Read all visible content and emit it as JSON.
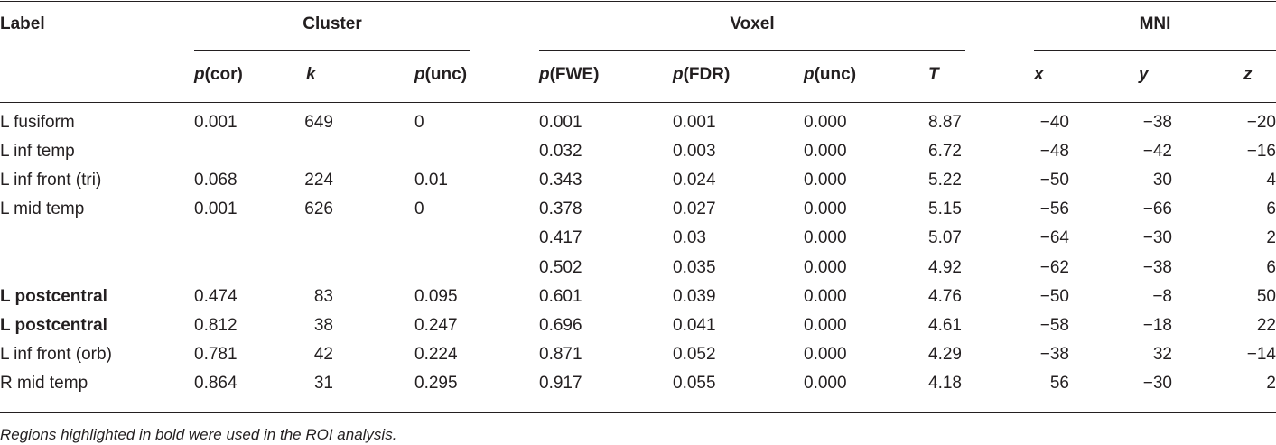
{
  "table": {
    "header": {
      "label": "Label",
      "cluster": "Cluster",
      "voxel": "Voxel",
      "mni": "MNI",
      "sub": {
        "p_cor": {
          "p": "p",
          "rest": "(cor)"
        },
        "k": "k",
        "p_unc_cluster": {
          "p": "p",
          "rest": "(unc)"
        },
        "p_fwe": {
          "p": "p",
          "rest": "(FWE)"
        },
        "p_fdr": {
          "p": "p",
          "rest": "(FDR)"
        },
        "p_unc_voxel": {
          "p": "p",
          "rest": "(unc)"
        },
        "t": "T",
        "x": "x",
        "y": "y",
        "z": "z"
      }
    },
    "rows": [
      {
        "label": "L fusiform",
        "bold": false,
        "p_cor": "0.001",
        "k": "649",
        "p_unc_c": "0",
        "p_fwe": "0.001",
        "p_fdr": "0.001",
        "p_unc_v": "0.000",
        "t": "8.87",
        "x": "−40",
        "y": "−38",
        "z": "−20"
      },
      {
        "label": "L inf temp",
        "bold": false,
        "p_cor": "",
        "k": "",
        "p_unc_c": "",
        "p_fwe": "0.032",
        "p_fdr": "0.003",
        "p_unc_v": "0.000",
        "t": "6.72",
        "x": "−48",
        "y": "−42",
        "z": "−16"
      },
      {
        "label": "L inf front (tri)",
        "bold": false,
        "p_cor": "0.068",
        "k": "224",
        "p_unc_c": "0.01",
        "p_fwe": "0.343",
        "p_fdr": "0.024",
        "p_unc_v": "0.000",
        "t": "5.22",
        "x": "−50",
        "y": "30",
        "z": "4"
      },
      {
        "label": "L mid temp",
        "bold": false,
        "p_cor": "0.001",
        "k": "626",
        "p_unc_c": "0",
        "p_fwe": "0.378",
        "p_fdr": "0.027",
        "p_unc_v": "0.000",
        "t": "5.15",
        "x": "−56",
        "y": "−66",
        "z": "6"
      },
      {
        "label": "",
        "bold": false,
        "p_cor": "",
        "k": "",
        "p_unc_c": "",
        "p_fwe": "0.417",
        "p_fdr": "0.03",
        "p_unc_v": "0.000",
        "t": "5.07",
        "x": "−64",
        "y": "−30",
        "z": "2"
      },
      {
        "label": "",
        "bold": false,
        "p_cor": "",
        "k": "",
        "p_unc_c": "",
        "p_fwe": "0.502",
        "p_fdr": "0.035",
        "p_unc_v": "0.000",
        "t": "4.92",
        "x": "−62",
        "y": "−38",
        "z": "6"
      },
      {
        "label": "L postcentral",
        "bold": true,
        "p_cor": "0.474",
        "k": "83",
        "p_unc_c": "0.095",
        "p_fwe": "0.601",
        "p_fdr": "0.039",
        "p_unc_v": "0.000",
        "t": "4.76",
        "x": "−50",
        "y": "−8",
        "z": "50"
      },
      {
        "label": "L postcentral",
        "bold": true,
        "p_cor": "0.812",
        "k": "38",
        "p_unc_c": "0.247",
        "p_fwe": "0.696",
        "p_fdr": "0.041",
        "p_unc_v": "0.000",
        "t": "4.61",
        "x": "−58",
        "y": "−18",
        "z": "22"
      },
      {
        "label": "L inf front (orb)",
        "bold": false,
        "p_cor": "0.781",
        "k": "42",
        "p_unc_c": "0.224",
        "p_fwe": "0.871",
        "p_fdr": "0.052",
        "p_unc_v": "0.000",
        "t": "4.29",
        "x": "−38",
        "y": "32",
        "z": "−14"
      },
      {
        "label": "R mid temp",
        "bold": false,
        "p_cor": "0.864",
        "k": "31",
        "p_unc_c": "0.295",
        "p_fwe": "0.917",
        "p_fdr": "0.055",
        "p_unc_v": "0.000",
        "t": "4.18",
        "x": "56",
        "y": "−30",
        "z": "2"
      }
    ],
    "footnote": "Regions highlighted in bold were used in the ROI analysis."
  }
}
